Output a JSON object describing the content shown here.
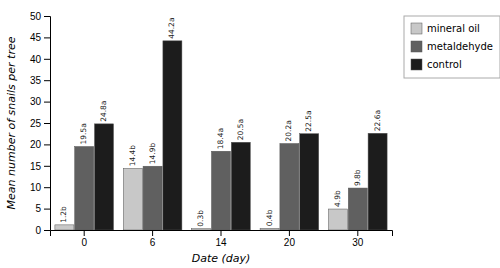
{
  "chart_data": {
    "type": "bar",
    "categories": [
      "0",
      "6",
      "14",
      "20",
      "30"
    ],
    "series": [
      {
        "name": "mineral oil",
        "color": "#c8c8c8",
        "values": [
          1.2,
          14.4,
          0.3,
          0.4,
          4.9
        ],
        "value_labels": [
          "1.2b",
          "14.4b",
          "0.3b",
          "0.4b",
          "4.9b"
        ]
      },
      {
        "name": "metaldehyde",
        "color": "#606060",
        "values": [
          19.5,
          14.9,
          18.4,
          20.2,
          9.8
        ],
        "value_labels": [
          "19.5a",
          "14.9b",
          "18.4a",
          "20.2a",
          "9.8b"
        ]
      },
      {
        "name": "control",
        "color": "#1c1c1c",
        "values": [
          24.8,
          44.2,
          20.5,
          22.5,
          22.6
        ],
        "value_labels": [
          "24.8a",
          "44.2a",
          "20.5a",
          "22.5a",
          "22.6a"
        ]
      }
    ],
    "xlabel": "Date (day)",
    "ylabel": "Mean number of snails per tree",
    "ylim": [
      0,
      50
    ],
    "yticks": [
      0,
      5,
      10,
      15,
      20,
      25,
      30,
      35,
      40,
      45,
      50
    ],
    "data_labels": true,
    "legend": "right"
  }
}
